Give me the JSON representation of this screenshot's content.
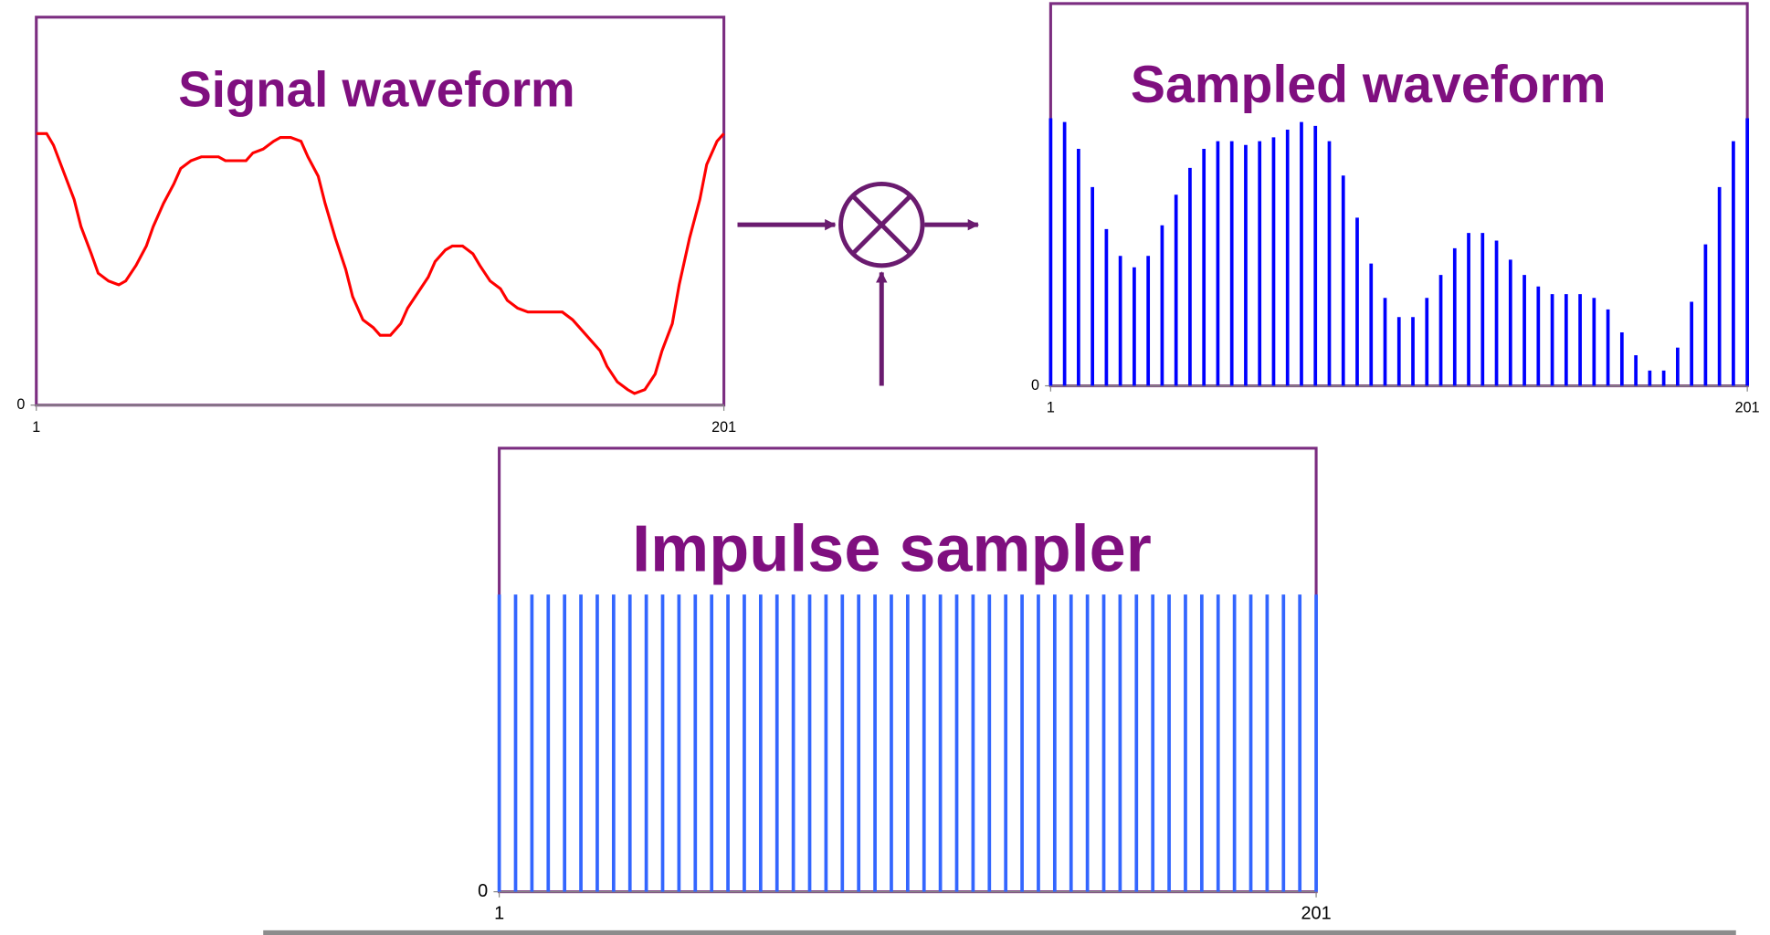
{
  "chart_data": [
    {
      "type": "line",
      "title": "Signal waveform",
      "color": "#ff0000",
      "x": [
        1,
        4,
        6,
        9,
        12,
        14,
        17,
        19,
        22,
        25,
        27,
        30,
        33,
        35,
        38,
        41,
        43,
        46,
        49,
        51,
        54,
        56,
        59,
        62,
        64,
        67,
        70,
        72,
        75,
        78,
        80,
        83,
        85,
        88,
        91,
        93,
        96,
        99,
        101,
        104,
        107,
        109,
        112,
        115,
        117,
        120,
        122,
        125,
        128,
        130,
        133,
        136,
        138,
        141,
        144,
        146,
        149,
        152,
        154,
        157,
        159,
        162,
        165,
        167,
        170,
        173,
        175,
        178,
        181,
        183,
        186,
        188,
        191,
        194,
        196,
        199,
        201
      ],
      "values": [
        70,
        70,
        67,
        60,
        53,
        46,
        39,
        34,
        32,
        31,
        32,
        36,
        41,
        46,
        52,
        57,
        61,
        63,
        64,
        64,
        64,
        63,
        63,
        63,
        65,
        66,
        68,
        69,
        69,
        68,
        64,
        59,
        52,
        43,
        35,
        28,
        22,
        20,
        18,
        18,
        21,
        25,
        29,
        33,
        37,
        40,
        41,
        41,
        39,
        36,
        32,
        30,
        27,
        25,
        24,
        24,
        24,
        24,
        24,
        22,
        20,
        17,
        14,
        10,
        6,
        4,
        3,
        4,
        8,
        14,
        21,
        31,
        43,
        53,
        62,
        68,
        70
      ],
      "xlim": [
        1,
        201
      ],
      "xticks": [
        1,
        201
      ],
      "ylim": [
        0,
        100
      ],
      "yticks": [
        0
      ]
    },
    {
      "type": "stem",
      "title": "Sampled waveform",
      "color": "#0000ff",
      "x": [
        1,
        5,
        9,
        13,
        17,
        21,
        25,
        29,
        33,
        37,
        41,
        45,
        49,
        53,
        57,
        61,
        65,
        69,
        73,
        77,
        81,
        85,
        89,
        93,
        97,
        101,
        105,
        109,
        113,
        117,
        121,
        125,
        129,
        133,
        137,
        141,
        145,
        149,
        153,
        157,
        161,
        165,
        169,
        173,
        177,
        181,
        185,
        189,
        193,
        197,
        201
      ],
      "values": [
        70,
        69,
        62,
        52,
        41,
        34,
        31,
        34,
        42,
        50,
        57,
        62,
        64,
        64,
        63,
        64,
        65,
        67,
        69,
        68,
        64,
        55,
        44,
        32,
        23,
        18,
        18,
        23,
        29,
        36,
        40,
        40,
        38,
        33,
        29,
        26,
        24,
        24,
        24,
        23,
        20,
        14,
        8,
        4,
        4,
        10,
        22,
        37,
        52,
        64,
        70
      ],
      "xlim": [
        1,
        201
      ],
      "xticks": [
        1,
        201
      ],
      "ylim": [
        0,
        100
      ],
      "yticks": [
        0
      ]
    },
    {
      "type": "stem",
      "title": "Impulse sampler",
      "color": "#3366ff",
      "x": [
        1,
        5,
        9,
        13,
        17,
        21,
        25,
        29,
        33,
        37,
        41,
        45,
        49,
        53,
        57,
        61,
        65,
        69,
        73,
        77,
        81,
        85,
        89,
        93,
        97,
        101,
        105,
        109,
        113,
        117,
        121,
        125,
        129,
        133,
        137,
        141,
        145,
        149,
        153,
        157,
        161,
        165,
        169,
        173,
        177,
        181,
        185,
        189,
        193,
        197,
        201
      ],
      "values": [
        67,
        67,
        67,
        67,
        67,
        67,
        67,
        67,
        67,
        67,
        67,
        67,
        67,
        67,
        67,
        67,
        67,
        67,
        67,
        67,
        67,
        67,
        67,
        67,
        67,
        67,
        67,
        67,
        67,
        67,
        67,
        67,
        67,
        67,
        67,
        67,
        67,
        67,
        67,
        67,
        67,
        67,
        67,
        67,
        67,
        67,
        67,
        67,
        67,
        67,
        67
      ],
      "xlim": [
        1,
        201
      ],
      "xticks": [
        1,
        201
      ],
      "ylim": [
        0,
        100
      ],
      "yticks": [
        0
      ]
    }
  ]
}
